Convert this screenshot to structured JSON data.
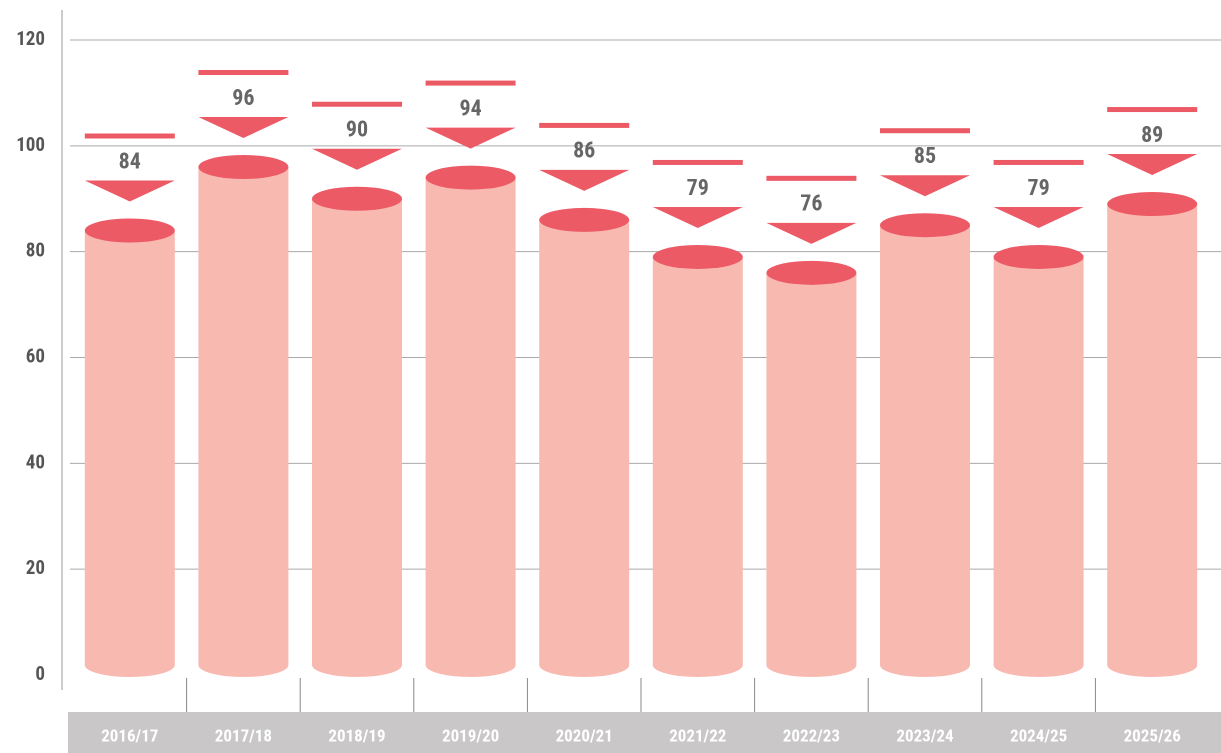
{
  "chart_data": {
    "type": "cylinder-bar",
    "categories": [
      "2016/17",
      "2017/18",
      "2018/19",
      "2019/20",
      "2020/21",
      "2021/22",
      "2022/23",
      "2023/24",
      "2024/25",
      "2025/26"
    ],
    "values": [
      84,
      96,
      90,
      94,
      86,
      79,
      76,
      85,
      79,
      89
    ],
    "color": "#f8b9b1",
    "top_color": "#ec5a66",
    "ylim": [
      0,
      120
    ],
    "yticks": [
      0,
      20,
      40,
      60,
      80,
      100,
      120
    ],
    "grid": true
  }
}
